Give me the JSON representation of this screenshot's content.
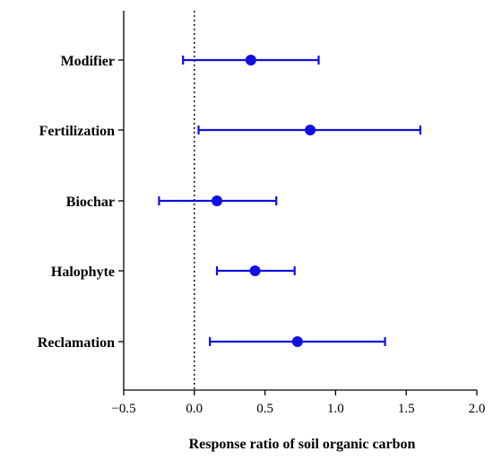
{
  "chart_data": {
    "type": "forest",
    "xlabel": "Response ratio of soil organic carbon",
    "xlim": [
      -0.5,
      2.0
    ],
    "xticks": [
      -0.5,
      0.0,
      0.5,
      1.0,
      1.5,
      2.0
    ],
    "xtick_labels": [
      "−0.5",
      "0.0",
      "0.5",
      "1.0",
      "1.5",
      "2.0"
    ],
    "reference_line": 0.0,
    "categories": [
      "Modifier",
      "Fertilization",
      "Biochar",
      "Halophyte",
      "Reclamation"
    ],
    "series": [
      {
        "points": [
          {
            "label": "Modifier",
            "mean": 0.4,
            "lower": -0.08,
            "upper": 0.88
          },
          {
            "label": "Fertilization",
            "mean": 0.82,
            "lower": 0.03,
            "upper": 1.6
          },
          {
            "label": "Biochar",
            "mean": 0.16,
            "lower": -0.25,
            "upper": 0.58
          },
          {
            "label": "Halophyte",
            "mean": 0.43,
            "lower": 0.16,
            "upper": 0.71
          },
          {
            "label": "Reclamation",
            "mean": 0.73,
            "lower": 0.11,
            "upper": 1.35
          }
        ]
      }
    ],
    "colors": {
      "marker": "#1010e0",
      "axis": "#000000"
    },
    "grid": false
  }
}
